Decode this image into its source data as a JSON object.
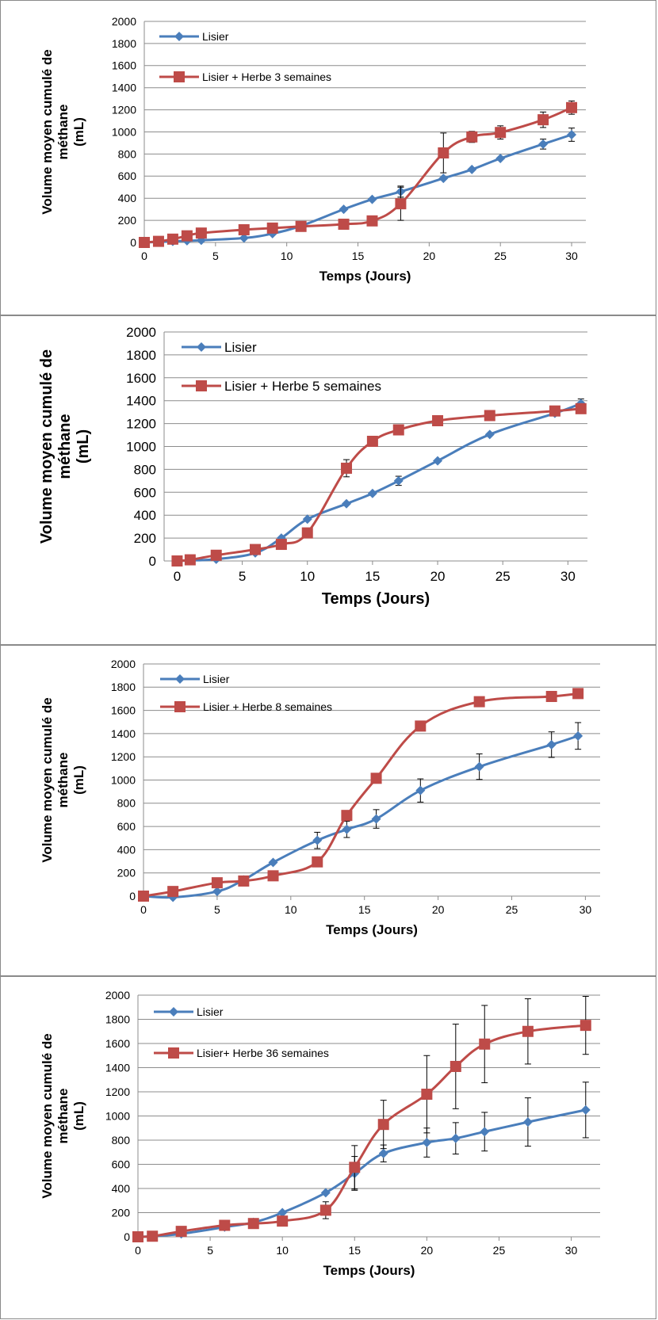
{
  "chart_data": [
    {
      "type": "line",
      "xlabel": "Temps (Jours)",
      "ylabel": "Volume moyen cumulé de méthane (mL)",
      "ylabel_lines": [
        "Volume moyen cumulé de",
        "méthane",
        "(mL)"
      ],
      "xlim": [
        0,
        31
      ],
      "ylim": [
        0,
        2000
      ],
      "xticks": [
        0,
        5,
        10,
        15,
        20,
        25,
        30
      ],
      "yticks": [
        0,
        200,
        400,
        600,
        800,
        1000,
        1200,
        1400,
        1600,
        1800,
        2000
      ],
      "grid": "horizontal",
      "legend": "top-left",
      "series": [
        {
          "name": "Lisier",
          "color": "#4a7ebb",
          "marker": "diamond",
          "x": [
            0,
            1,
            2,
            3,
            4,
            7,
            9,
            11,
            14,
            16,
            18,
            21,
            23,
            25,
            28,
            30
          ],
          "y": [
            0,
            5,
            10,
            15,
            20,
            40,
            80,
            150,
            300,
            390,
            460,
            580,
            660,
            760,
            890,
            975
          ],
          "err": [
            0,
            0,
            0,
            0,
            0,
            0,
            0,
            0,
            0,
            0,
            50,
            0,
            0,
            0,
            45,
            60
          ]
        },
        {
          "name": "Lisier + Herbe 3 semaines",
          "color": "#be4b48",
          "marker": "square",
          "x": [
            0,
            1,
            2,
            3,
            4,
            7,
            9,
            11,
            14,
            16,
            18,
            21,
            23,
            25,
            28,
            30
          ],
          "y": [
            0,
            10,
            30,
            60,
            85,
            115,
            130,
            145,
            165,
            195,
            350,
            810,
            955,
            995,
            1110,
            1220
          ],
          "err": [
            0,
            0,
            0,
            0,
            0,
            0,
            0,
            0,
            0,
            0,
            150,
            180,
            50,
            60,
            70,
            60
          ]
        }
      ]
    },
    {
      "type": "line",
      "xlabel": "Temps (Jours)",
      "ylabel": "Volume moyen cumulé de méthane (mL)",
      "ylabel_lines": [
        "Volume moyen cumulé de",
        "méthane",
        "(mL)"
      ],
      "xlim": [
        -1,
        31.5
      ],
      "ylim": [
        0,
        2000
      ],
      "xticks": [
        0,
        5,
        10,
        15,
        20,
        25,
        30
      ],
      "yticks": [
        0,
        200,
        400,
        600,
        800,
        1000,
        1200,
        1400,
        1600,
        1800,
        2000
      ],
      "grid": "horizontal",
      "legend": "top-left",
      "series": [
        {
          "name": "Lisier",
          "color": "#4a7ebb",
          "marker": "diamond",
          "x": [
            0,
            1,
            3,
            6,
            8,
            10,
            13,
            15,
            17,
            20,
            24,
            29,
            31
          ],
          "y": [
            0,
            5,
            15,
            70,
            200,
            365,
            500,
            590,
            700,
            875,
            1105,
            1290,
            1375
          ],
          "err": [
            0,
            0,
            0,
            0,
            0,
            0,
            0,
            0,
            40,
            0,
            0,
            0,
            40
          ]
        },
        {
          "name": "Lisier + Herbe 5 semaines",
          "color": "#be4b48",
          "marker": "square",
          "x": [
            0,
            1,
            3,
            6,
            8,
            10,
            13,
            15,
            17,
            20,
            24,
            29,
            31
          ],
          "y": [
            0,
            10,
            50,
            100,
            145,
            245,
            810,
            1045,
            1145,
            1225,
            1270,
            1310,
            1330
          ],
          "err": [
            0,
            0,
            0,
            0,
            0,
            0,
            75,
            0,
            0,
            0,
            0,
            0,
            40
          ]
        }
      ]
    },
    {
      "type": "line",
      "xlabel": "Temps (Jours)",
      "ylabel": "Volume moyen cumulé de méthane (mL)",
      "ylabel_lines": [
        "Volume moyen cumulé de",
        "méthane",
        "(mL)"
      ],
      "xlim": [
        0,
        31
      ],
      "ylim": [
        0,
        2000
      ],
      "xticks": [
        0,
        5,
        10,
        15,
        20,
        25,
        30
      ],
      "yticks": [
        0,
        200,
        400,
        600,
        800,
        1000,
        1200,
        1400,
        1600,
        1800,
        2000
      ],
      "grid": "horizontal",
      "legend": "top-left",
      "series": [
        {
          "name": "Lisier",
          "color": "#4a7ebb",
          "marker": "diamond",
          "x": [
            0,
            2,
            5,
            6.8,
            8.8,
            11.8,
            13.8,
            15.8,
            18.8,
            22.8,
            27.7,
            29.5
          ],
          "y": [
            0,
            -10,
            40,
            140,
            290,
            480,
            575,
            665,
            910,
            1115,
            1305,
            1380
          ],
          "err": [
            0,
            0,
            0,
            0,
            0,
            70,
            70,
            80,
            100,
            110,
            110,
            115
          ]
        },
        {
          "name": "Lisier + Herbe 8 semaines",
          "color": "#be4b48",
          "marker": "square",
          "x": [
            0,
            2,
            5,
            6.8,
            8.8,
            11.8,
            13.8,
            15.8,
            18.8,
            22.8,
            27.7,
            29.5
          ],
          "y": [
            0,
            40,
            115,
            130,
            175,
            295,
            695,
            1015,
            1465,
            1675,
            1720,
            1745
          ],
          "err": [
            0,
            0,
            0,
            0,
            0,
            0,
            0,
            0,
            0,
            0,
            0,
            0
          ]
        }
      ]
    },
    {
      "type": "line",
      "xlabel": "Temps (Jours)",
      "ylabel": "Volume moyen cumulé de méthane (mL)",
      "ylabel_lines": [
        "Volume moyen cumulé de",
        "méthane",
        "(mL)"
      ],
      "xlim": [
        0,
        32
      ],
      "ylim": [
        0,
        2000
      ],
      "xticks": [
        0,
        5,
        10,
        15,
        20,
        25,
        30
      ],
      "yticks": [
        0,
        200,
        400,
        600,
        800,
        1000,
        1200,
        1400,
        1600,
        1800,
        2000
      ],
      "grid": "horizontal",
      "legend": "top-left",
      "series": [
        {
          "name": "Lisier",
          "color": "#4a7ebb",
          "marker": "diamond",
          "x": [
            0,
            1,
            3,
            6,
            8,
            10,
            13,
            15,
            17,
            20,
            22,
            24,
            27,
            31
          ],
          "y": [
            0,
            5,
            25,
            80,
            120,
            200,
            365,
            525,
            690,
            780,
            815,
            870,
            950,
            1050
          ],
          "err": [
            0,
            0,
            0,
            0,
            0,
            0,
            0,
            140,
            70,
            120,
            130,
            160,
            200,
            230
          ]
        },
        {
          "name": "Lisier+ Herbe 36 semaines",
          "color": "#be4b48",
          "marker": "square",
          "x": [
            0,
            1,
            3,
            6,
            8,
            10,
            13,
            15,
            17,
            20,
            22,
            24,
            27,
            31
          ],
          "y": [
            0,
            5,
            45,
            95,
            110,
            130,
            220,
            575,
            930,
            1180,
            1410,
            1595,
            1700,
            1750
          ],
          "err": [
            0,
            0,
            0,
            0,
            0,
            0,
            70,
            180,
            200,
            320,
            350,
            320,
            270,
            240
          ]
        }
      ]
    }
  ]
}
